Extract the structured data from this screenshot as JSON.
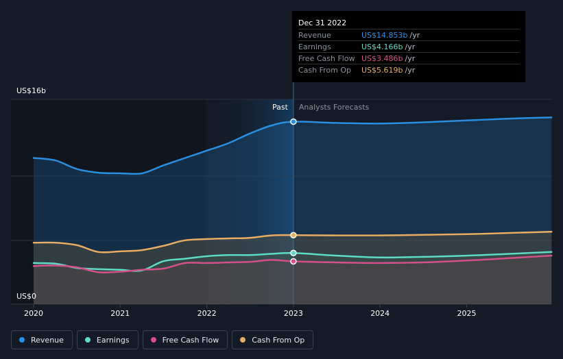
{
  "chart_data": {
    "type": "line",
    "y_unit_top": "US$16b",
    "y_unit_bottom": "US$0",
    "ylim": [
      0,
      16
    ],
    "xlim": [
      2019.98,
      2025.98
    ],
    "x_ticks": [
      "2020",
      "2021",
      "2022",
      "2023",
      "2024",
      "2025"
    ],
    "divider_x": 2023.0,
    "past_label": "Past",
    "forecast_label": "Analysts Forecasts",
    "series": [
      {
        "name": "Revenue",
        "color": "#2a8fe0",
        "x": [
          2020.0,
          2020.25,
          2020.5,
          2020.75,
          2021.0,
          2021.25,
          2021.5,
          2021.75,
          2022.0,
          2022.25,
          2022.5,
          2022.75,
          2023.0,
          2023.5,
          2024.0,
          2024.5,
          2025.0,
          2025.5,
          2025.98
        ],
        "y": [
          11.9,
          11.7,
          11.0,
          10.7,
          10.65,
          10.65,
          11.3,
          11.9,
          12.5,
          13.1,
          13.9,
          14.55,
          14.853,
          14.75,
          14.7,
          14.8,
          14.95,
          15.1,
          15.2
        ]
      },
      {
        "name": "Earnings",
        "color": "#5ddbc6",
        "x": [
          2020.0,
          2020.25,
          2020.5,
          2020.75,
          2021.0,
          2021.25,
          2021.5,
          2021.75,
          2022.0,
          2022.25,
          2022.5,
          2022.75,
          2023.0,
          2023.5,
          2024.0,
          2024.5,
          2025.0,
          2025.5,
          2025.98
        ],
        "y": [
          3.35,
          3.3,
          2.95,
          2.85,
          2.8,
          2.75,
          3.5,
          3.7,
          3.9,
          4.0,
          4.0,
          4.1,
          4.166,
          3.95,
          3.8,
          3.85,
          3.95,
          4.1,
          4.25
        ]
      },
      {
        "name": "Free Cash Flow",
        "color": "#d4508a",
        "x": [
          2020.0,
          2020.25,
          2020.5,
          2020.75,
          2021.0,
          2021.25,
          2021.5,
          2021.75,
          2022.0,
          2022.25,
          2022.5,
          2022.75,
          2023.0,
          2023.5,
          2024.0,
          2024.5,
          2025.0,
          2025.5,
          2025.98
        ],
        "y": [
          3.1,
          3.15,
          3.0,
          2.6,
          2.65,
          2.8,
          2.9,
          3.35,
          3.35,
          3.4,
          3.45,
          3.6,
          3.486,
          3.4,
          3.35,
          3.4,
          3.55,
          3.75,
          3.95
        ]
      },
      {
        "name": "Cash From Op",
        "color": "#e8ac62",
        "x": [
          2020.0,
          2020.25,
          2020.5,
          2020.75,
          2021.0,
          2021.25,
          2021.5,
          2021.75,
          2022.0,
          2022.25,
          2022.5,
          2022.75,
          2023.0,
          2023.5,
          2024.0,
          2024.5,
          2025.0,
          2025.5,
          2025.98
        ],
        "y": [
          5.0,
          5.0,
          4.8,
          4.25,
          4.3,
          4.4,
          4.75,
          5.2,
          5.3,
          5.35,
          5.4,
          5.6,
          5.619,
          5.6,
          5.6,
          5.65,
          5.7,
          5.8,
          5.9
        ]
      }
    ]
  },
  "tooltip": {
    "date": "Dec 31 2022",
    "rows": [
      {
        "name": "Revenue",
        "value": "US$14.853b",
        "unit": "/yr",
        "color": "#2a8fe0"
      },
      {
        "name": "Earnings",
        "value": "US$4.166b",
        "unit": "/yr",
        "color": "#5ddbc6"
      },
      {
        "name": "Free Cash Flow",
        "value": "US$3.486b",
        "unit": "/yr",
        "color": "#d4508a"
      },
      {
        "name": "Cash From Op",
        "value": "US$5.619b",
        "unit": "/yr",
        "color": "#e8ac62"
      }
    ]
  },
  "legend": [
    {
      "label": "Revenue",
      "color": "#2a8fe0"
    },
    {
      "label": "Earnings",
      "color": "#5ddbc6"
    },
    {
      "label": "Free Cash Flow",
      "color": "#d4508a"
    },
    {
      "label": "Cash From Op",
      "color": "#e8ac62"
    }
  ]
}
